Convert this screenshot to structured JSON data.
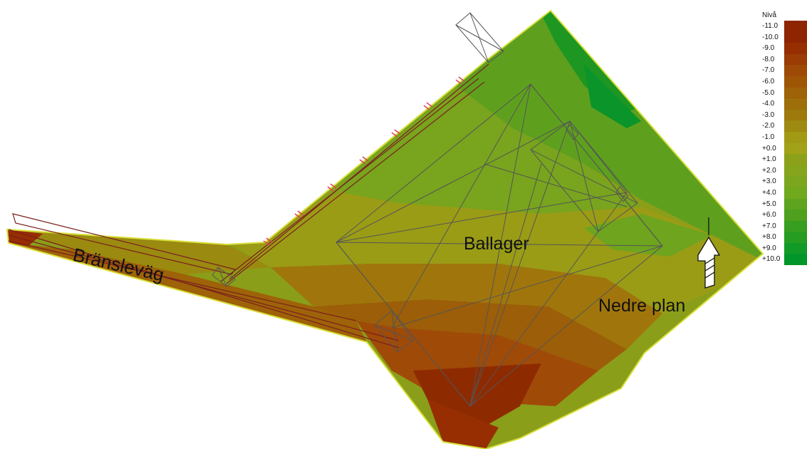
{
  "map": {
    "labels": {
      "fuel_road": "Bränsleväg",
      "ball_storage": "Ballager",
      "lower_level": "Nedre plan"
    },
    "colors": {
      "site_outline": "#d8e03a",
      "low_red": "#8e2400",
      "mid_red": "#a2420a",
      "brown": "#9a6608",
      "olive": "#9aa018",
      "yellow_green": "#7ea81e",
      "green": "#4f9e1f",
      "bright_green": "#00962a",
      "structure_lines": "#555555",
      "road_lines": "#7a1f1f",
      "rail_marks": "#e0405a"
    },
    "north_arrow": "north-arrow-icon"
  },
  "legend": {
    "title": "Nivå",
    "entries": [
      {
        "label": "-11.0",
        "color": "#8e2400"
      },
      {
        "label": "-10.0",
        "color": "#8e2400"
      },
      {
        "label": "-9.0",
        "color": "#962e02"
      },
      {
        "label": "-8.0",
        "color": "#9a3c04"
      },
      {
        "label": "-7.0",
        "color": "#9c4a06"
      },
      {
        "label": "-6.0",
        "color": "#9e5606"
      },
      {
        "label": "-5.0",
        "color": "#9e6208"
      },
      {
        "label": "-4.0",
        "color": "#9e6e0a"
      },
      {
        "label": "-3.0",
        "color": "#9e7a0c"
      },
      {
        "label": "-2.0",
        "color": "#9e8a10"
      },
      {
        "label": "-1.0",
        "color": "#a29a14"
      },
      {
        "label": "+0.0",
        "color": "#a2a218"
      },
      {
        "label": "+1.0",
        "color": "#8ca01a"
      },
      {
        "label": "+2.0",
        "color": "#86a41c"
      },
      {
        "label": "+3.0",
        "color": "#7ca61e"
      },
      {
        "label": "+4.0",
        "color": "#70a81e"
      },
      {
        "label": "+5.0",
        "color": "#5ea41e"
      },
      {
        "label": "+6.0",
        "color": "#4ea01e"
      },
      {
        "label": "+7.0",
        "color": "#389e20"
      },
      {
        "label": "+8.0",
        "color": "#269c22"
      },
      {
        "label": "+9.0",
        "color": "#129a26"
      },
      {
        "label": "+10.0",
        "color": "#00962a"
      }
    ]
  }
}
